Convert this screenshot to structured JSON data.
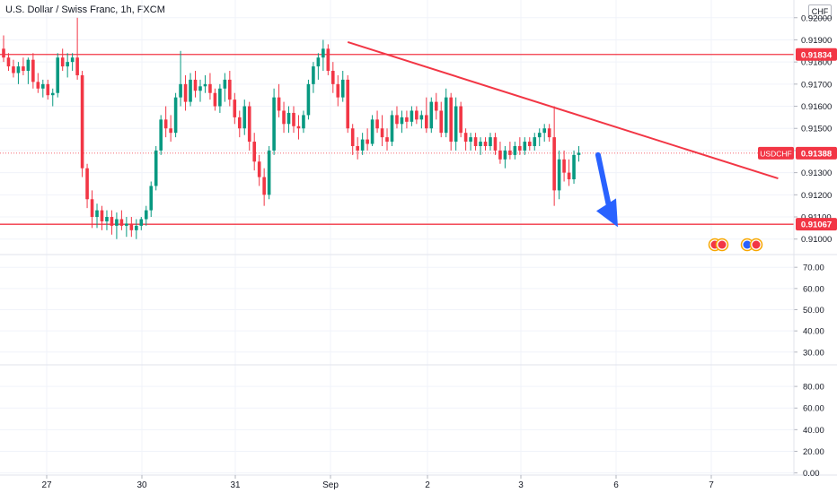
{
  "header": {
    "title": "U.S. Dollar / Swiss Franc, 1h, FXCM",
    "currency_badge": "CHF"
  },
  "chart_data": [
    {
      "type": "candlestick",
      "title": "U.S. Dollar / Swiss Franc, 1h, FXCM",
      "symbol": "USDCHF",
      "timeframe": "1h",
      "source": "FXCM",
      "currency": "CHF",
      "x_tick_labels": [
        "27",
        "30",
        "31",
        "Sep",
        "2",
        "3",
        "6",
        "7"
      ],
      "y_ticks": [
        0.91,
        0.911,
        0.912,
        0.913,
        0.914,
        0.915,
        0.916,
        0.917,
        0.918,
        0.919,
        0.92
      ],
      "y_tick_labels": [
        "0.91000",
        "0.91100",
        "0.91200",
        "0.91300",
        "0.91400",
        "0.91500",
        "0.91600",
        "0.91700",
        "0.91800",
        "0.91900",
        "0.92000"
      ],
      "ylim": [
        0.9093,
        0.9208
      ],
      "grid": true,
      "price_badges": [
        {
          "label": "",
          "value": "0.91834",
          "price": 0.91834,
          "color": "#f23645"
        },
        {
          "label": "USDCHF",
          "value": "0.91388",
          "price": 0.91388,
          "color": "#f23645"
        },
        {
          "label": "",
          "value": "0.91067",
          "price": 0.91067,
          "color": "#f23645"
        }
      ],
      "horizontal_lines": [
        {
          "price": 0.91834,
          "color": "#f23645"
        },
        {
          "price": 0.91067,
          "color": "#f23645"
        }
      ],
      "trend_line": {
        "x1": 70,
        "y1": 0.9189,
        "x2": 140,
        "y2": 0.9129,
        "color": "#f23645"
      },
      "arrow": {
        "x1": 120,
        "y1": 0.9138,
        "x2": 127,
        "y2": 0.9107,
        "color": "#2962ff"
      },
      "current_price_line": 0.91388,
      "candles_ohlc": [
        [
          0.9186,
          0.9192,
          0.918,
          0.9182
        ],
        [
          0.9182,
          0.9184,
          0.9176,
          0.9178
        ],
        [
          0.9178,
          0.9181,
          0.9173,
          0.9175
        ],
        [
          0.9175,
          0.918,
          0.917,
          0.9178
        ],
        [
          0.9178,
          0.9182,
          0.9174,
          0.9176
        ],
        [
          0.9176,
          0.9182,
          0.917,
          0.9181
        ],
        [
          0.9181,
          0.9184,
          0.9168,
          0.9171
        ],
        [
          0.9171,
          0.9175,
          0.9166,
          0.9168
        ],
        [
          0.9168,
          0.9172,
          0.9164,
          0.917
        ],
        [
          0.917,
          0.9172,
          0.9163,
          0.9165
        ],
        [
          0.9165,
          0.9168,
          0.916,
          0.9166
        ],
        [
          0.9166,
          0.9184,
          0.9164,
          0.9182
        ],
        [
          0.9182,
          0.9186,
          0.9176,
          0.9178
        ],
        [
          0.9178,
          0.9184,
          0.9173,
          0.918
        ],
        [
          0.918,
          0.9184,
          0.9176,
          0.9182
        ],
        [
          0.9182,
          0.92,
          0.9172,
          0.9174
        ],
        [
          0.9174,
          0.9176,
          0.9128,
          0.9132
        ],
        [
          0.9132,
          0.9134,
          0.9114,
          0.9118
        ],
        [
          0.9118,
          0.9122,
          0.9105,
          0.911
        ],
        [
          0.911,
          0.9116,
          0.9105,
          0.9113
        ],
        [
          0.9113,
          0.9115,
          0.9104,
          0.9108
        ],
        [
          0.9108,
          0.9113,
          0.9104,
          0.911
        ],
        [
          0.911,
          0.9113,
          0.9102,
          0.9106
        ],
        [
          0.9106,
          0.9112,
          0.91,
          0.9109
        ],
        [
          0.9109,
          0.9113,
          0.9104,
          0.9106
        ],
        [
          0.9106,
          0.911,
          0.9101,
          0.9107
        ],
        [
          0.9107,
          0.911,
          0.9101,
          0.9104
        ],
        [
          0.9104,
          0.9109,
          0.91,
          0.9106
        ],
        [
          0.9106,
          0.911,
          0.9104,
          0.9109
        ],
        [
          0.9109,
          0.9115,
          0.9106,
          0.9113
        ],
        [
          0.9113,
          0.9126,
          0.911,
          0.9124
        ],
        [
          0.9124,
          0.9142,
          0.9122,
          0.914
        ],
        [
          0.914,
          0.9156,
          0.9138,
          0.9154
        ],
        [
          0.9154,
          0.916,
          0.9146,
          0.915
        ],
        [
          0.915,
          0.9156,
          0.9144,
          0.9148
        ],
        [
          0.9148,
          0.9166,
          0.9146,
          0.9164
        ],
        [
          0.9164,
          0.9185,
          0.916,
          0.917
        ],
        [
          0.917,
          0.9174,
          0.9158,
          0.9162
        ],
        [
          0.9162,
          0.9175,
          0.916,
          0.9172
        ],
        [
          0.9172,
          0.9176,
          0.9164,
          0.9167
        ],
        [
          0.9167,
          0.9172,
          0.9162,
          0.9169
        ],
        [
          0.9169,
          0.9174,
          0.9166,
          0.917
        ],
        [
          0.917,
          0.9175,
          0.9163,
          0.9166
        ],
        [
          0.9166,
          0.9168,
          0.9158,
          0.916
        ],
        [
          0.916,
          0.917,
          0.9157,
          0.9168
        ],
        [
          0.9168,
          0.9175,
          0.9162,
          0.9172
        ],
        [
          0.9172,
          0.9176,
          0.916,
          0.9163
        ],
        [
          0.9163,
          0.9166,
          0.9152,
          0.9155
        ],
        [
          0.9155,
          0.9158,
          0.9146,
          0.915
        ],
        [
          0.915,
          0.9163,
          0.9147,
          0.916
        ],
        [
          0.916,
          0.9162,
          0.914,
          0.9144
        ],
        [
          0.9144,
          0.9148,
          0.9131,
          0.9135
        ],
        [
          0.9135,
          0.9138,
          0.9124,
          0.9128
        ],
        [
          0.9128,
          0.9132,
          0.9115,
          0.912
        ],
        [
          0.912,
          0.9142,
          0.9118,
          0.914
        ],
        [
          0.914,
          0.9168,
          0.9138,
          0.9164
        ],
        [
          0.9164,
          0.917,
          0.9155,
          0.9158
        ],
        [
          0.9158,
          0.9162,
          0.9148,
          0.9152
        ],
        [
          0.9152,
          0.916,
          0.9148,
          0.9157
        ],
        [
          0.9157,
          0.916,
          0.9148,
          0.9151
        ],
        [
          0.9151,
          0.9156,
          0.9145,
          0.915
        ],
        [
          0.915,
          0.9158,
          0.9148,
          0.9156
        ],
        [
          0.9156,
          0.9172,
          0.9154,
          0.917
        ],
        [
          0.917,
          0.918,
          0.9166,
          0.9178
        ],
        [
          0.9178,
          0.9184,
          0.9172,
          0.9182
        ],
        [
          0.9182,
          0.919,
          0.9176,
          0.9186
        ],
        [
          0.9186,
          0.9188,
          0.9174,
          0.9176
        ],
        [
          0.9176,
          0.918,
          0.9166,
          0.917
        ],
        [
          0.917,
          0.9174,
          0.916,
          0.9164
        ],
        [
          0.9164,
          0.9176,
          0.9162,
          0.9172
        ],
        [
          0.9172,
          0.9174,
          0.9148,
          0.915
        ],
        [
          0.915,
          0.9152,
          0.9138,
          0.9142
        ],
        [
          0.9142,
          0.9146,
          0.9136,
          0.914
        ],
        [
          0.914,
          0.9148,
          0.9138,
          0.9145
        ],
        [
          0.9145,
          0.915,
          0.914,
          0.9143
        ],
        [
          0.9143,
          0.9156,
          0.9142,
          0.9154
        ],
        [
          0.9154,
          0.9158,
          0.9148,
          0.915
        ],
        [
          0.915,
          0.9156,
          0.9142,
          0.9146
        ],
        [
          0.9146,
          0.915,
          0.914,
          0.9144
        ],
        [
          0.9144,
          0.9158,
          0.9142,
          0.9156
        ],
        [
          0.9156,
          0.916,
          0.915,
          0.9152
        ],
        [
          0.9152,
          0.9158,
          0.9148,
          0.9155
        ],
        [
          0.9155,
          0.9158,
          0.915,
          0.9153
        ],
        [
          0.9153,
          0.916,
          0.9151,
          0.9158
        ],
        [
          0.9158,
          0.916,
          0.9152,
          0.9154
        ],
        [
          0.9154,
          0.9158,
          0.915,
          0.9156
        ],
        [
          0.9156,
          0.9164,
          0.9148,
          0.915
        ],
        [
          0.915,
          0.9164,
          0.9148,
          0.9162
        ],
        [
          0.9162,
          0.9166,
          0.9154,
          0.9158
        ],
        [
          0.9158,
          0.9162,
          0.9146,
          0.9148
        ],
        [
          0.9148,
          0.9168,
          0.9146,
          0.9164
        ],
        [
          0.9164,
          0.9166,
          0.914,
          0.9144
        ],
        [
          0.9144,
          0.9164,
          0.914,
          0.916
        ],
        [
          0.916,
          0.9162,
          0.9146,
          0.9148
        ],
        [
          0.9148,
          0.915,
          0.914,
          0.9144
        ],
        [
          0.9144,
          0.9148,
          0.914,
          0.9146
        ],
        [
          0.9146,
          0.9148,
          0.914,
          0.9142
        ],
        [
          0.9142,
          0.9146,
          0.9138,
          0.9144
        ],
        [
          0.9144,
          0.9146,
          0.914,
          0.9142
        ],
        [
          0.9142,
          0.9148,
          0.914,
          0.9146
        ],
        [
          0.9146,
          0.9148,
          0.9138,
          0.914
        ],
        [
          0.914,
          0.9144,
          0.9134,
          0.9136
        ],
        [
          0.9136,
          0.9142,
          0.9132,
          0.914
        ],
        [
          0.914,
          0.9144,
          0.9136,
          0.9138
        ],
        [
          0.9138,
          0.9144,
          0.9136,
          0.9142
        ],
        [
          0.9142,
          0.9146,
          0.9138,
          0.914
        ],
        [
          0.914,
          0.9146,
          0.9138,
          0.9144
        ],
        [
          0.9144,
          0.9146,
          0.914,
          0.9142
        ],
        [
          0.9142,
          0.9148,
          0.914,
          0.9146
        ],
        [
          0.9146,
          0.915,
          0.9142,
          0.9148
        ],
        [
          0.9148,
          0.9152,
          0.9144,
          0.915
        ],
        [
          0.915,
          0.9152,
          0.9144,
          0.9146
        ],
        [
          0.9146,
          0.916,
          0.9115,
          0.9122
        ],
        [
          0.9122,
          0.914,
          0.9118,
          0.9136
        ],
        [
          0.9136,
          0.914,
          0.9126,
          0.913
        ],
        [
          0.913,
          0.9136,
          0.9124,
          0.9127
        ],
        [
          0.9127,
          0.914,
          0.9125,
          0.9138
        ],
        [
          0.9138,
          0.9142,
          0.9135,
          0.9139
        ]
      ],
      "indicator_panels": [
        {
          "y_tick_labels": [
            "70.00",
            "60.00",
            "50.00",
            "40.00",
            "30.00"
          ],
          "ylim": [
            24,
            76
          ]
        },
        {
          "y_tick_labels": [
            "80.00",
            "60.00",
            "40.00",
            "20.00",
            "0.00"
          ],
          "ylim": [
            -2,
            100
          ]
        }
      ]
    }
  ]
}
